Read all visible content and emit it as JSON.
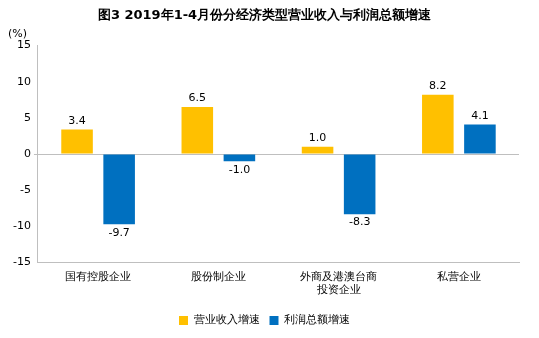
{
  "chart_data": {
    "type": "bar",
    "title": "图3 2019年1-4月份分经济类型营业收入与利润总额增速",
    "ylabel": "(%)",
    "categories": [
      "国有控股企业",
      "股份制企业",
      [
        "外商及港澳台商",
        "投资企业"
      ],
      "私营企业"
    ],
    "series": [
      {
        "name": "营业收入增速",
        "color": "#FFC000",
        "values": [
          3.4,
          6.5,
          1.0,
          8.2
        ],
        "value_labels": [
          "3.4",
          "6.5",
          "1.0",
          "8.2"
        ]
      },
      {
        "name": "利润总额增速",
        "color": "#0070C0",
        "values": [
          -9.7,
          -1.0,
          -8.3,
          4.1
        ],
        "value_labels": [
          "-9.7",
          "-1.0",
          "-8.3",
          "4.1"
        ]
      }
    ],
    "ylim": [
      -15,
      15
    ],
    "yticks": [
      -15,
      -10,
      -5,
      0,
      5,
      10,
      15
    ],
    "grid": false,
    "legend": "bottom",
    "data_labels": true
  }
}
